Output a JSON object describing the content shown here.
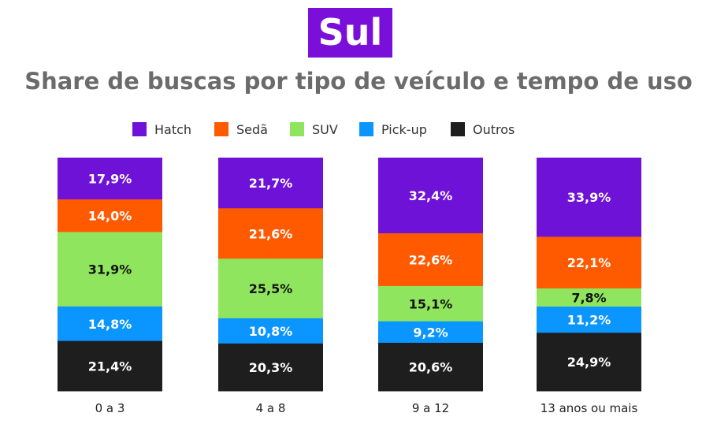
{
  "badge": {
    "text": "Sul",
    "color": "#7a0fd9"
  },
  "title": "Share de buscas por tipo de veículo e tempo de uso",
  "legend": [
    {
      "label": "Hatch",
      "color": "#6f12d8"
    },
    {
      "label": "Sedã",
      "color": "#ff5a00"
    },
    {
      "label": "SUV",
      "color": "#90e55e"
    },
    {
      "label": "Pick-up",
      "color": "#0a95ff"
    },
    {
      "label": "Outros",
      "color": "#1e1e1e"
    }
  ],
  "chart_data": {
    "type": "bar",
    "stacked": true,
    "normalized_to_percent": true,
    "title": "Share de buscas por tipo de veículo e tempo de uso",
    "xlabel": "",
    "ylabel": "",
    "grid": false,
    "legend_position": "top",
    "categories": [
      "0 a 3",
      "4 a 8",
      "9 a 12",
      "13 anos ou mais"
    ],
    "series": [
      {
        "name": "Hatch",
        "color": "#6f12d8",
        "label_color": "#ffffff",
        "values": [
          17.9,
          21.7,
          32.4,
          33.9
        ],
        "labels": [
          "17,9%",
          "21,7%",
          "32,4%",
          "33,9%"
        ]
      },
      {
        "name": "Sedã",
        "color": "#ff5a00",
        "label_color": "#ffffff",
        "values": [
          14.0,
          21.6,
          22.6,
          22.1
        ],
        "labels": [
          "14,0%",
          "21,6%",
          "22,6%",
          "22,1%"
        ]
      },
      {
        "name": "SUV",
        "color": "#90e55e",
        "label_color": "#111111",
        "values": [
          31.9,
          25.5,
          15.1,
          7.8
        ],
        "labels": [
          "31,9%",
          "25,5%",
          "15,1%",
          "7,8%"
        ]
      },
      {
        "name": "Pick-up",
        "color": "#0a95ff",
        "label_color": "#ffffff",
        "values": [
          14.8,
          10.8,
          9.2,
          11.2
        ],
        "labels": [
          "14,8%",
          "10,8%",
          "9,2%",
          "11,2%"
        ]
      },
      {
        "name": "Outros",
        "color": "#1e1e1e",
        "label_color": "#ffffff",
        "values": [
          21.4,
          20.3,
          20.6,
          24.9
        ],
        "labels": [
          "21,4%",
          "20,3%",
          "20,6%",
          "24,9%"
        ]
      }
    ]
  }
}
